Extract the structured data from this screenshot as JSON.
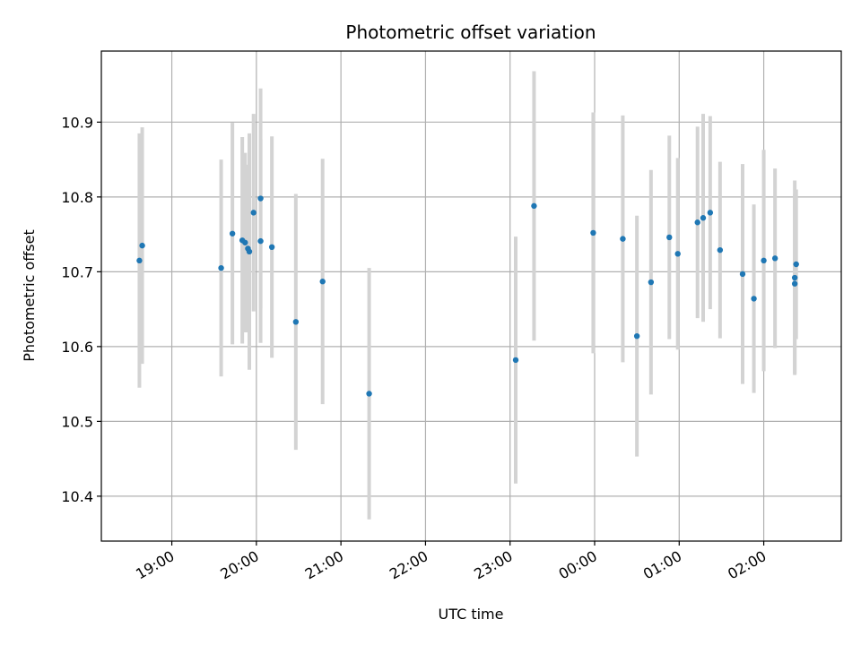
{
  "chart_data": {
    "type": "scatter",
    "title": "Photometric offset variation",
    "xlabel": "UTC time",
    "ylabel": "Photometric offset",
    "x_axis": "time",
    "xlim": [
      "18:10",
      "02:55"
    ],
    "ylim": [
      10.34,
      10.995
    ],
    "grid": true,
    "x_ticks": [
      "19:00",
      "20:00",
      "21:00",
      "22:00",
      "23:00",
      "00:00",
      "01:00",
      "02:00"
    ],
    "y_ticks": [
      "10.4",
      "10.5",
      "10.6",
      "10.7",
      "10.8",
      "10.9"
    ],
    "colors": {
      "points": "#1f77b4",
      "errorbars": "#d3d3d3",
      "grid": "#b0b0b0"
    },
    "points": [
      {
        "x": "18:37",
        "y": 10.715,
        "err": 0.17
      },
      {
        "x": "18:39",
        "y": 10.735,
        "err": 0.158
      },
      {
        "x": "19:35",
        "y": 10.705,
        "err": 0.145
      },
      {
        "x": "19:43",
        "y": 10.751,
        "err": 0.148
      },
      {
        "x": "19:50",
        "y": 10.742,
        "err": 0.138
      },
      {
        "x": "19:52",
        "y": 10.739,
        "err": 0.12
      },
      {
        "x": "19:54",
        "y": 10.731,
        "err": 0.112
      },
      {
        "x": "19:55",
        "y": 10.727,
        "err": 0.158
      },
      {
        "x": "19:58",
        "y": 10.779,
        "err": 0.132
      },
      {
        "x": "20:03",
        "y": 10.798,
        "err": 0.147
      },
      {
        "x": "20:03",
        "y": 10.741,
        "err": 0.136
      },
      {
        "x": "20:11",
        "y": 10.733,
        "err": 0.148
      },
      {
        "x": "20:28",
        "y": 10.633,
        "err": 0.171
      },
      {
        "x": "20:47",
        "y": 10.687,
        "err": 0.164
      },
      {
        "x": "21:20",
        "y": 10.537,
        "err": 0.168
      },
      {
        "x": "23:04",
        "y": 10.582,
        "err": 0.165
      },
      {
        "x": "23:17",
        "y": 10.788,
        "err": 0.18
      },
      {
        "x": "23:59",
        "y": 10.752,
        "err": 0.161
      },
      {
        "x": "00:20",
        "y": 10.744,
        "err": 0.165
      },
      {
        "x": "00:30",
        "y": 10.614,
        "err": 0.161
      },
      {
        "x": "00:40",
        "y": 10.686,
        "err": 0.15
      },
      {
        "x": "00:53",
        "y": 10.746,
        "err": 0.136
      },
      {
        "x": "00:59",
        "y": 10.724,
        "err": 0.128
      },
      {
        "x": "01:13",
        "y": 10.766,
        "err": 0.128
      },
      {
        "x": "01:17",
        "y": 10.772,
        "err": 0.139
      },
      {
        "x": "01:22",
        "y": 10.779,
        "err": 0.129
      },
      {
        "x": "01:29",
        "y": 10.729,
        "err": 0.118
      },
      {
        "x": "01:45",
        "y": 10.697,
        "err": 0.147
      },
      {
        "x": "01:53",
        "y": 10.664,
        "err": 0.126
      },
      {
        "x": "02:00",
        "y": 10.715,
        "err": 0.148
      },
      {
        "x": "02:08",
        "y": 10.718,
        "err": 0.12
      },
      {
        "x": "02:22",
        "y": 10.684,
        "err": 0.12
      },
      {
        "x": "02:22",
        "y": 10.692,
        "err": 0.13
      },
      {
        "x": "02:23",
        "y": 10.71,
        "err": 0.1
      }
    ]
  }
}
